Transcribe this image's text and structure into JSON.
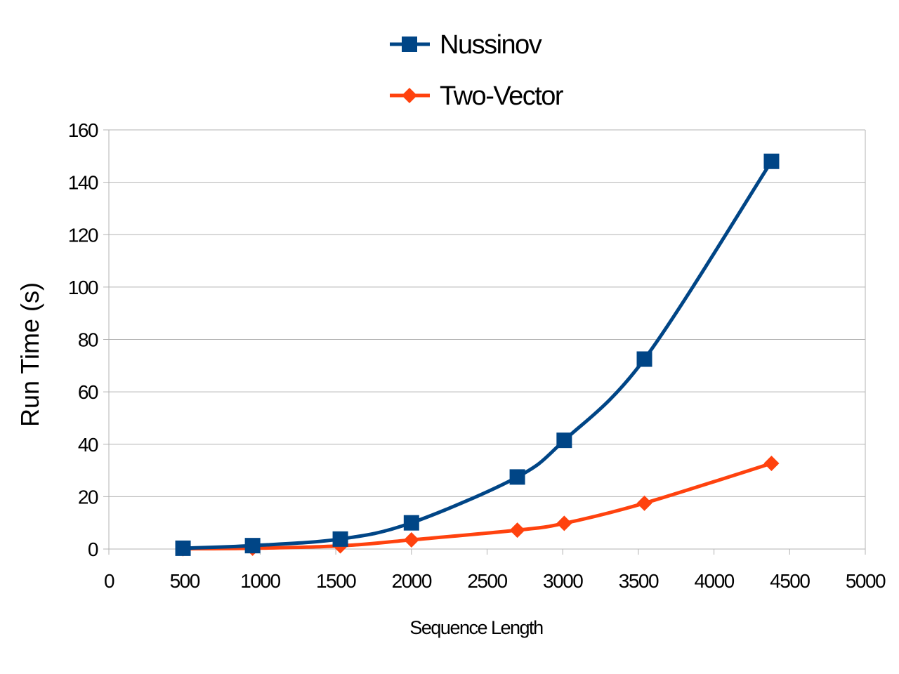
{
  "chart_data": {
    "type": "line",
    "xlabel": "Sequence Length",
    "ylabel": "Run Time (s)",
    "xlim": [
      0,
      5000
    ],
    "ylim": [
      0,
      160
    ],
    "xticks": [
      0,
      500,
      1000,
      1500,
      2000,
      2500,
      3000,
      3500,
      4000,
      4500,
      5000
    ],
    "yticks": [
      0,
      20,
      40,
      60,
      80,
      100,
      120,
      140,
      160
    ],
    "grid": "horizontal",
    "legend_position": "top",
    "series": [
      {
        "name": "Nussinov",
        "color": "#004586",
        "marker": "square",
        "x": [
          490,
          950,
          1530,
          2000,
          2700,
          3010,
          3540,
          4380
        ],
        "y": [
          0.3,
          1.3,
          3.8,
          10,
          27.5,
          41.5,
          72.5,
          148
        ]
      },
      {
        "name": "Two-Vector",
        "color": "#ff420e",
        "marker": "diamond",
        "x": [
          490,
          950,
          1530,
          2000,
          2700,
          3010,
          3540,
          4380
        ],
        "y": [
          0.1,
          0.3,
          1.2,
          3.5,
          7.2,
          9.8,
          17.5,
          32.7
        ]
      }
    ]
  }
}
